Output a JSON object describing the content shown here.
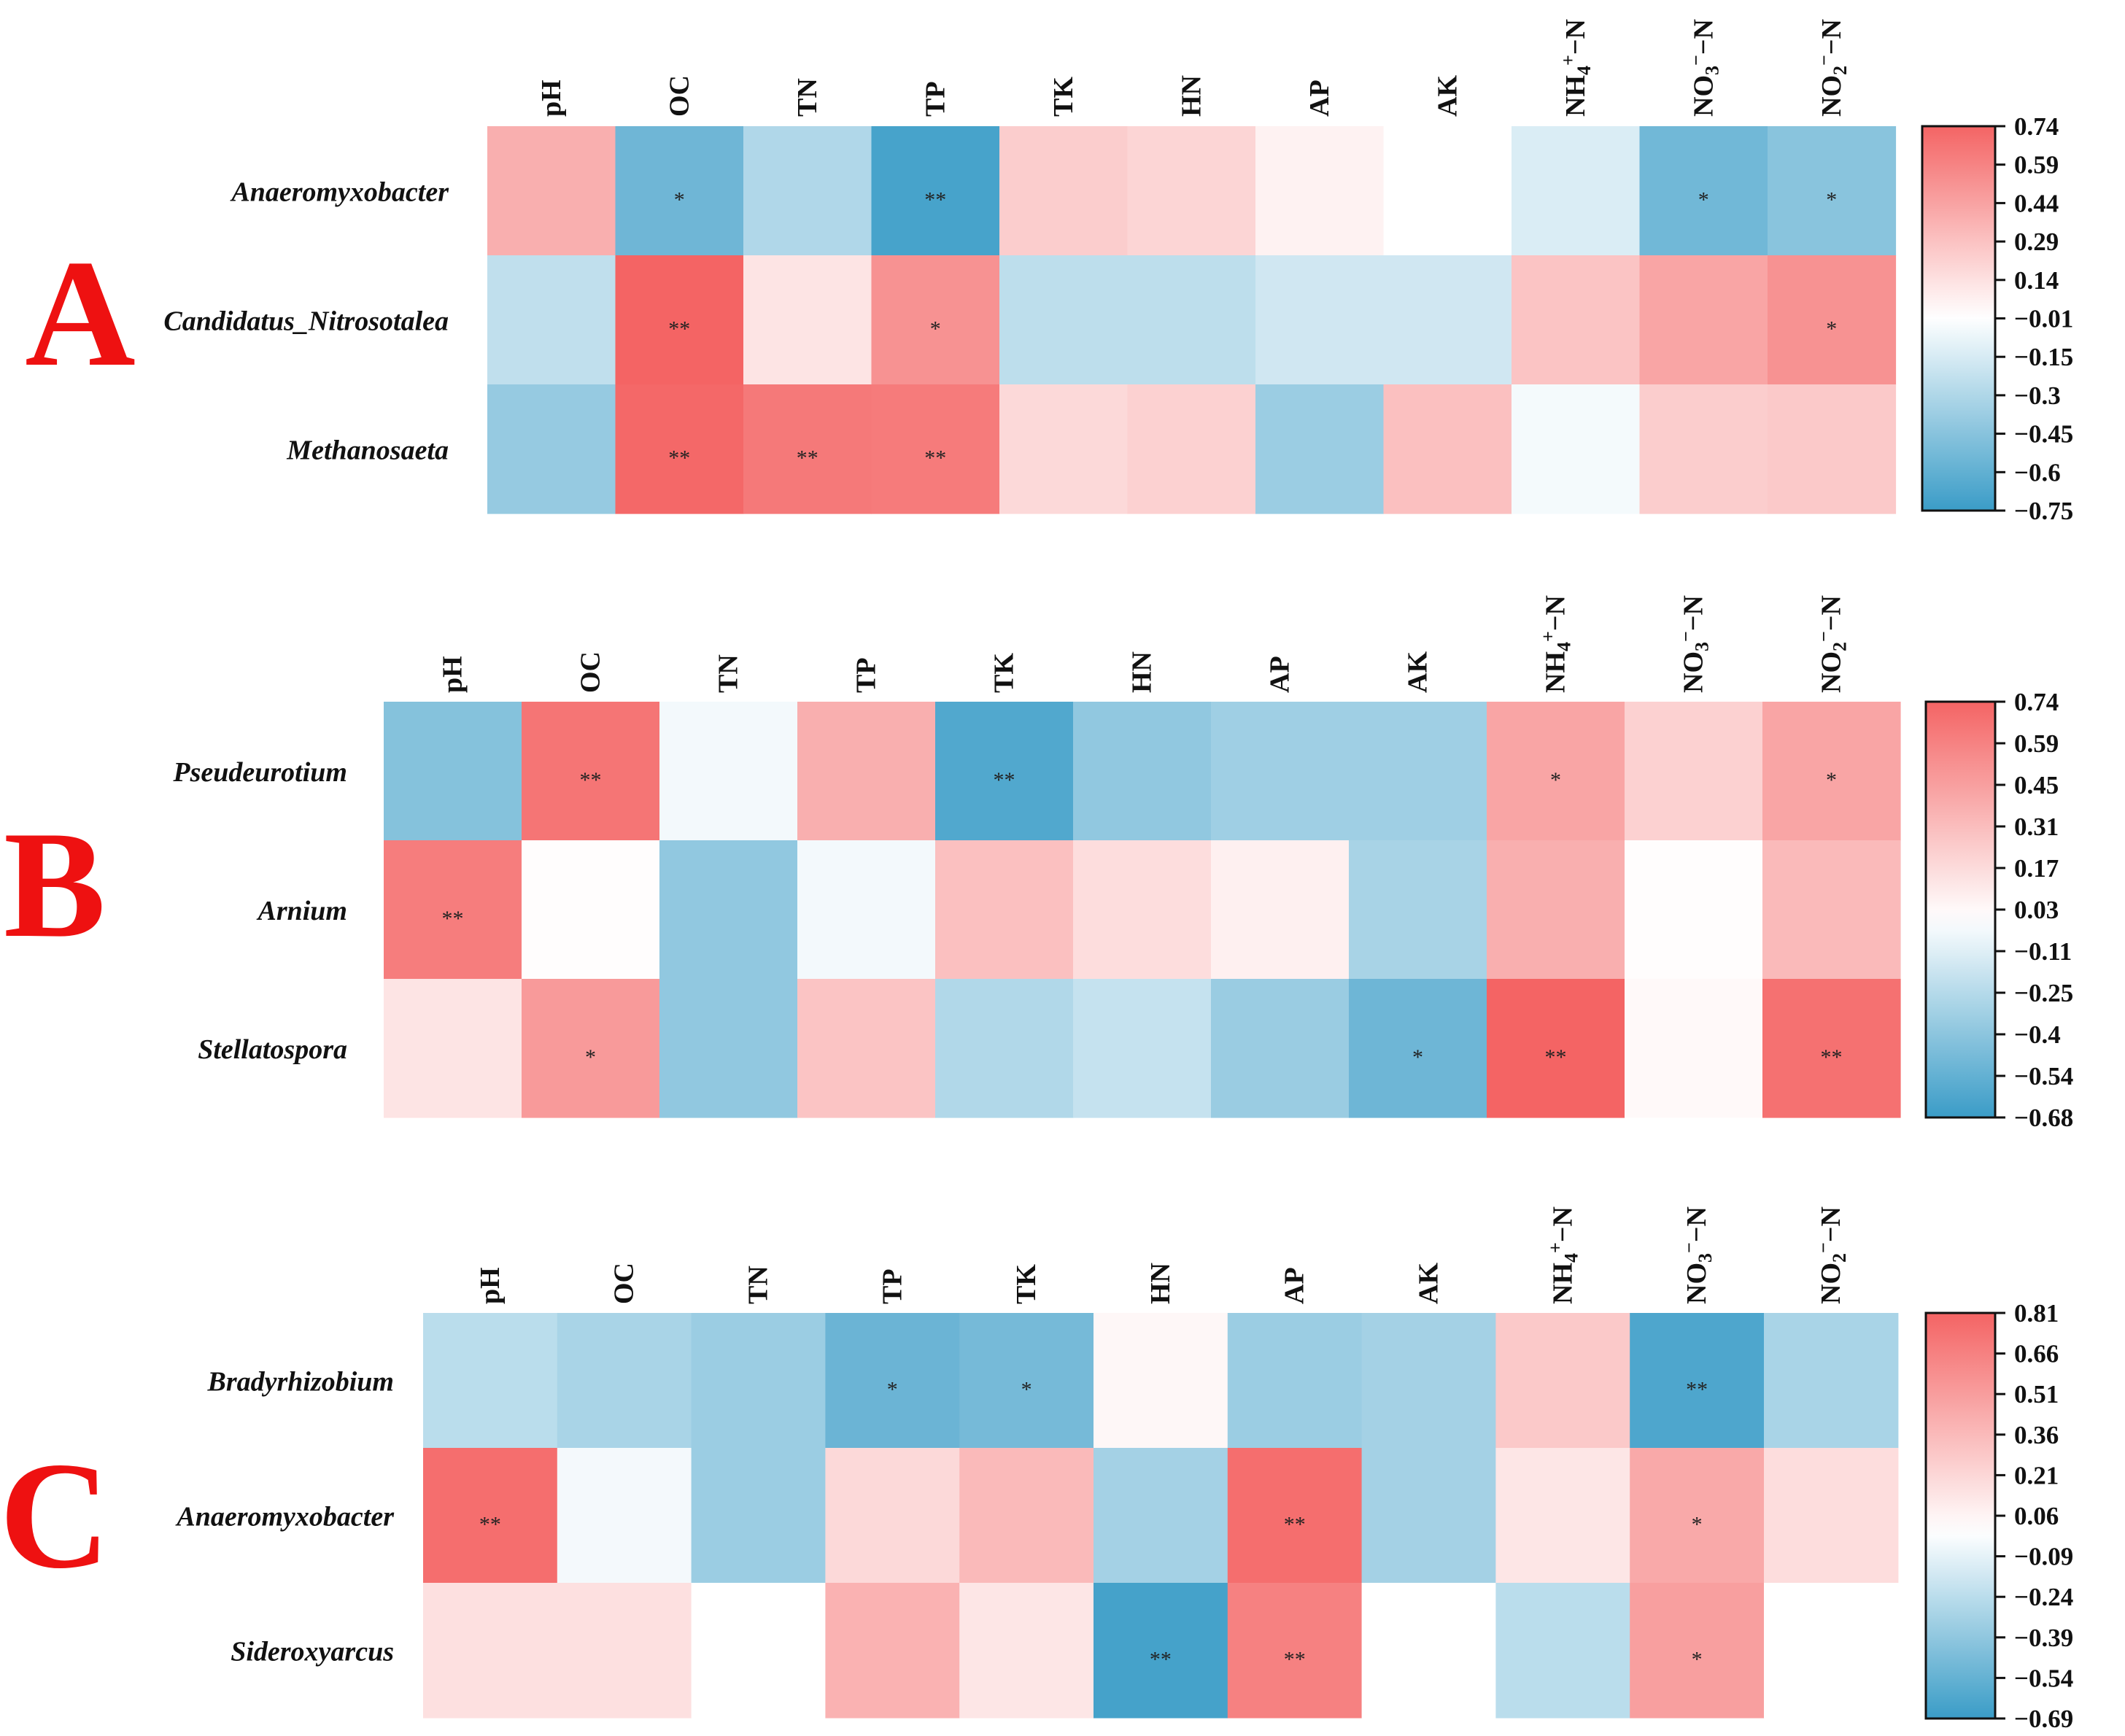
{
  "chart_data": [
    {
      "type": "heatmap",
      "panel": "A",
      "columns": [
        "pH",
        "OC",
        "TN",
        "TP",
        "TK",
        "HN",
        "AP",
        "AK",
        "NH4+-N",
        "NO3−-N",
        "NO2−-N"
      ],
      "rows": [
        "Anaeromyxobacter",
        "Candidatus_Nitrosotalea",
        "Methanosaeta"
      ],
      "values": [
        [
          0.38,
          -0.55,
          -0.3,
          -0.7,
          0.24,
          0.2,
          0.06,
          0.0,
          -0.14,
          -0.54,
          -0.45
        ],
        [
          -0.24,
          0.74,
          0.13,
          0.52,
          -0.25,
          -0.25,
          -0.18,
          -0.18,
          0.28,
          0.43,
          0.52
        ],
        [
          -0.4,
          0.72,
          0.64,
          0.63,
          0.18,
          0.22,
          -0.38,
          0.3,
          -0.04,
          0.24,
          0.26
        ]
      ],
      "significance": [
        [
          "",
          "*",
          "",
          "**",
          "",
          "",
          "",
          "",
          "",
          "*",
          "*"
        ],
        [
          "",
          "**",
          "",
          "*",
          "",
          "",
          "",
          "",
          "",
          "",
          "*"
        ],
        [
          "",
          "**",
          "**",
          "**",
          "",
          "",
          "",
          "",
          "",
          "",
          ""
        ]
      ],
      "colorbar_ticks": [
        "0.74",
        "0.59",
        "0.44",
        "0.29",
        "0.14",
        "−0.01",
        "−0.15",
        "−0.3",
        "−0.45",
        "−0.6",
        "−0.75"
      ],
      "vmin": -0.75,
      "vmax": 0.74
    },
    {
      "type": "heatmap",
      "panel": "B",
      "columns": [
        "pH",
        "OC",
        "TN",
        "TP",
        "TK",
        "HN",
        "AP",
        "AK",
        "NH4+-N",
        "NO3−-N",
        "NO2−-N"
      ],
      "rows": [
        "Pseudeurotium",
        "Arnium",
        "Stellatospora"
      ],
      "values": [
        [
          -0.42,
          0.66,
          -0.04,
          0.38,
          -0.6,
          -0.38,
          -0.33,
          -0.33,
          0.43,
          0.22,
          0.43
        ],
        [
          0.62,
          0.01,
          -0.38,
          -0.04,
          0.3,
          0.16,
          0.07,
          -0.3,
          0.38,
          0.01,
          0.33
        ],
        [
          0.13,
          0.48,
          -0.38,
          0.28,
          -0.27,
          -0.2,
          -0.35,
          -0.5,
          0.74,
          0.03,
          0.68
        ]
      ],
      "significance": [
        [
          "",
          "**",
          "",
          "",
          "**",
          "",
          "",
          "",
          "*",
          "",
          "*"
        ],
        [
          "**",
          "",
          "",
          "",
          "",
          "",
          "",
          "",
          "",
          "",
          ""
        ],
        [
          "",
          "*",
          "",
          "",
          "",
          "",
          "",
          "*",
          "**",
          "",
          "**"
        ]
      ],
      "colorbar_ticks": [
        "0.74",
        "0.59",
        "0.45",
        "0.31",
        "0.17",
        "0.03",
        "−0.11",
        "−0.25",
        "−0.4",
        "−0.54",
        "−0.68"
      ],
      "vmin": -0.68,
      "vmax": 0.74
    },
    {
      "type": "heatmap",
      "panel": "C",
      "columns": [
        "pH",
        "OC",
        "TN",
        "TP",
        "TK",
        "HN",
        "AP",
        "AK",
        "NH4+-N",
        "NO3−-N",
        "NO2−-N"
      ],
      "rows": [
        "Bradyrhizobium",
        "Anaeromyxobacter",
        "Sideroxyarcus"
      ],
      "values": [
        [
          -0.24,
          -0.3,
          -0.35,
          -0.52,
          -0.48,
          0.04,
          -0.35,
          -0.32,
          0.28,
          -0.62,
          -0.3
        ],
        [
          0.76,
          -0.04,
          -0.35,
          0.2,
          0.36,
          -0.32,
          0.76,
          -0.32,
          0.13,
          0.45,
          0.18
        ],
        [
          0.16,
          0.16,
          0.0,
          0.4,
          0.13,
          -0.65,
          0.66,
          0.0,
          -0.24,
          0.5,
          0.0
        ]
      ],
      "significance": [
        [
          "",
          "",
          "",
          "*",
          "*",
          "",
          "",
          "",
          "",
          "**",
          ""
        ],
        [
          "**",
          "",
          "",
          "",
          "",
          "",
          "**",
          "",
          "",
          "*",
          ""
        ],
        [
          "",
          "",
          "",
          "",
          "",
          "**",
          "**",
          "",
          "",
          "*",
          ""
        ]
      ],
      "colorbar_ticks": [
        "0.81",
        "0.66",
        "0.51",
        "0.36",
        "0.21",
        "0.06",
        "−0.09",
        "−0.24",
        "−0.39",
        "−0.54",
        "−0.69"
      ],
      "vmin": -0.69,
      "vmax": 0.81
    }
  ],
  "colors": {
    "positive": "#f46464",
    "neutral": "#ffffff",
    "negative": "#3a9cc7",
    "panel_letter": "#ee1111"
  }
}
